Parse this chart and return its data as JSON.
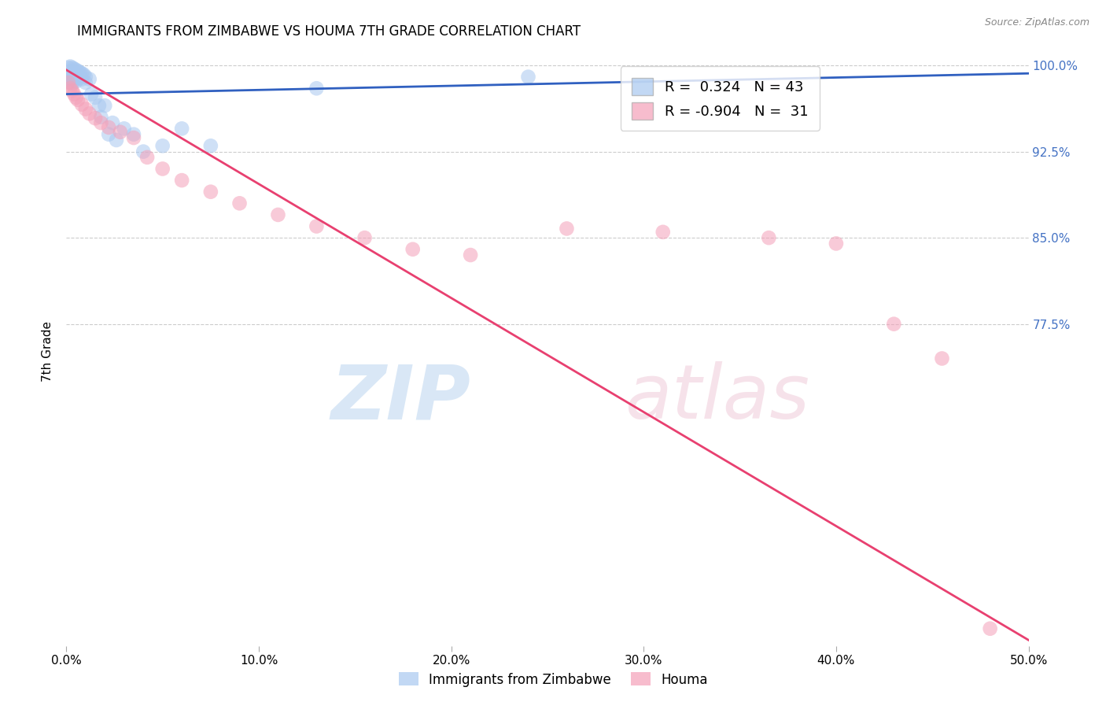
{
  "title": "IMMIGRANTS FROM ZIMBABWE VS HOUMA 7TH GRADE CORRELATION CHART",
  "source": "Source: ZipAtlas.com",
  "ylabel": "7th Grade",
  "blue_R": 0.324,
  "blue_N": 43,
  "pink_R": -0.904,
  "pink_N": 31,
  "blue_color": "#A8C8F0",
  "pink_color": "#F4A0B8",
  "blue_line_color": "#3060C0",
  "pink_line_color": "#E84070",
  "blue_points_x": [
    0.001,
    0.001,
    0.001,
    0.002,
    0.002,
    0.002,
    0.002,
    0.003,
    0.003,
    0.003,
    0.003,
    0.004,
    0.004,
    0.004,
    0.005,
    0.005,
    0.005,
    0.006,
    0.006,
    0.007,
    0.007,
    0.008,
    0.008,
    0.009,
    0.01,
    0.01,
    0.012,
    0.013,
    0.015,
    0.017,
    0.018,
    0.02,
    0.022,
    0.024,
    0.026,
    0.03,
    0.035,
    0.04,
    0.05,
    0.06,
    0.075,
    0.13,
    0.24
  ],
  "blue_points_y": [
    0.998,
    0.993,
    0.988,
    0.999,
    0.995,
    0.99,
    0.985,
    0.998,
    0.994,
    0.989,
    0.984,
    0.997,
    0.992,
    0.987,
    0.996,
    0.991,
    0.986,
    0.995,
    0.99,
    0.994,
    0.989,
    0.993,
    0.988,
    0.992,
    0.99,
    0.985,
    0.988,
    0.975,
    0.972,
    0.965,
    0.955,
    0.965,
    0.94,
    0.95,
    0.935,
    0.945,
    0.94,
    0.925,
    0.93,
    0.945,
    0.93,
    0.98,
    0.99
  ],
  "pink_points_x": [
    0.001,
    0.002,
    0.003,
    0.004,
    0.005,
    0.006,
    0.008,
    0.01,
    0.012,
    0.015,
    0.018,
    0.022,
    0.028,
    0.035,
    0.042,
    0.05,
    0.06,
    0.075,
    0.09,
    0.11,
    0.13,
    0.155,
    0.18,
    0.21,
    0.26,
    0.31,
    0.365,
    0.4,
    0.43,
    0.455,
    0.48
  ],
  "pink_points_y": [
    0.985,
    0.98,
    0.978,
    0.975,
    0.972,
    0.97,
    0.966,
    0.962,
    0.958,
    0.954,
    0.95,
    0.946,
    0.942,
    0.937,
    0.92,
    0.91,
    0.9,
    0.89,
    0.88,
    0.87,
    0.86,
    0.85,
    0.84,
    0.835,
    0.858,
    0.855,
    0.85,
    0.845,
    0.775,
    0.745,
    0.51
  ],
  "xlim": [
    0.0,
    0.5
  ],
  "ylim": [
    0.495,
    1.008
  ],
  "ytick_values": [
    1.0,
    0.925,
    0.85,
    0.775
  ],
  "ytick_labels": [
    "100.0%",
    "92.5%",
    "85.0%",
    "77.5%"
  ],
  "xtick_values": [
    0.0,
    0.1,
    0.2,
    0.3,
    0.4,
    0.5
  ],
  "xtick_labels": [
    "0.0%",
    "10.0%",
    "20.0%",
    "30.0%",
    "40.0%",
    "50.0%"
  ],
  "grid_color": "#CCCCCC",
  "background_color": "#FFFFFF",
  "right_tick_color": "#4472C4"
}
